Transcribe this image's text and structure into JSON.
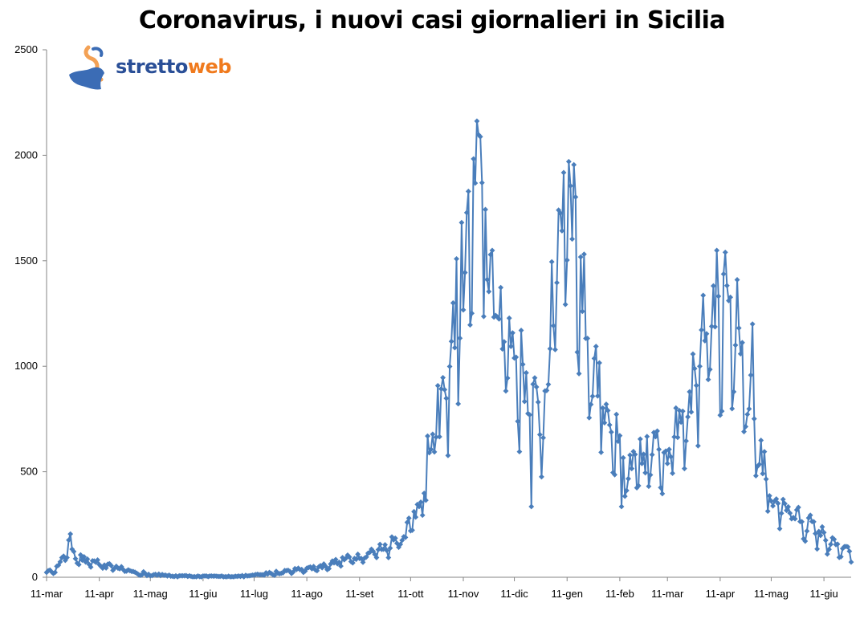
{
  "chart_data": {
    "type": "line",
    "title": "Coronavirus, i nuovi casi giornalieri in Sicilia",
    "xlabel": "",
    "ylabel": "",
    "ylim": [
      0,
      2500
    ],
    "yticks": [
      0,
      500,
      1000,
      1500,
      2000,
      2500
    ],
    "xticks": [
      "11-mar",
      "11-apr",
      "11-mag",
      "11-giu",
      "11-lug",
      "11-ago",
      "11-set",
      "11-ott",
      "11-nov",
      "11-dic",
      "11-gen",
      "11-feb",
      "11-mar",
      "11-apr",
      "11-mag",
      "11-giu"
    ],
    "grid": false,
    "legend": "none",
    "series": [
      {
        "color": "#4a7ebb",
        "x_start": "2020-03-11",
        "x_end": "2021-06-27",
        "marker": "diamond",
        "anchors": [
          [
            "2020-03-11",
            25
          ],
          [
            "2020-03-15",
            30
          ],
          [
            "2020-03-19",
            60
          ],
          [
            "2020-03-22",
            120
          ],
          [
            "2020-03-25",
            165
          ],
          [
            "2020-03-28",
            100
          ],
          [
            "2020-04-01",
            85
          ],
          [
            "2020-04-05",
            65
          ],
          [
            "2020-04-09",
            75
          ],
          [
            "2020-04-13",
            45
          ],
          [
            "2020-04-18",
            55
          ],
          [
            "2020-04-24",
            40
          ],
          [
            "2020-05-01",
            25
          ],
          [
            "2020-05-11",
            12
          ],
          [
            "2020-05-25",
            6
          ],
          [
            "2020-06-11",
            4
          ],
          [
            "2020-07-01",
            4
          ],
          [
            "2020-07-11",
            8
          ],
          [
            "2020-07-25",
            20
          ],
          [
            "2020-08-05",
            35
          ],
          [
            "2020-08-11",
            40
          ],
          [
            "2020-08-20",
            50
          ],
          [
            "2020-08-30",
            75
          ],
          [
            "2020-09-11",
            100
          ],
          [
            "2020-09-20",
            120
          ],
          [
            "2020-09-30",
            160
          ],
          [
            "2020-10-08",
            210
          ],
          [
            "2020-10-14",
            300
          ],
          [
            "2020-10-20",
            500
          ],
          [
            "2020-10-24",
            650
          ],
          [
            "2020-10-29",
            780
          ],
          [
            "2020-11-03",
            1000
          ],
          [
            "2020-11-08",
            1300
          ],
          [
            "2020-11-12",
            1450
          ],
          [
            "2020-11-16",
            1650
          ],
          [
            "2020-11-20",
            1800
          ],
          [
            "2020-11-24",
            1550
          ],
          [
            "2020-11-27",
            1420
          ],
          [
            "2020-12-01",
            1250
          ],
          [
            "2020-12-05",
            1200
          ],
          [
            "2020-12-10",
            1050
          ],
          [
            "2020-12-15",
            950
          ],
          [
            "2020-12-20",
            850
          ],
          [
            "2020-12-26",
            700
          ],
          [
            "2020-12-30",
            900
          ],
          [
            "2021-01-03",
            1300
          ],
          [
            "2021-01-06",
            1600
          ],
          [
            "2021-01-09",
            1800
          ],
          [
            "2021-01-13",
            1920
          ],
          [
            "2021-01-16",
            1600
          ],
          [
            "2021-01-20",
            1300
          ],
          [
            "2021-01-25",
            1000
          ],
          [
            "2021-01-30",
            900
          ],
          [
            "2021-02-04",
            780
          ],
          [
            "2021-02-08",
            650
          ],
          [
            "2021-02-13",
            500
          ],
          [
            "2021-02-18",
            470
          ],
          [
            "2021-02-22",
            520
          ],
          [
            "2021-02-27",
            560
          ],
          [
            "2021-03-05",
            580
          ],
          [
            "2021-03-11",
            600
          ],
          [
            "2021-03-16",
            720
          ],
          [
            "2021-03-20",
            780
          ],
          [
            "2021-03-25",
            870
          ],
          [
            "2021-03-30",
            1100
          ],
          [
            "2021-04-03",
            1300
          ],
          [
            "2021-04-07",
            1350
          ],
          [
            "2021-04-11",
            1200
          ],
          [
            "2021-04-16",
            1100
          ],
          [
            "2021-04-20",
            1000
          ],
          [
            "2021-04-25",
            880
          ],
          [
            "2021-04-30",
            750
          ],
          [
            "2021-05-04",
            600
          ],
          [
            "2021-05-08",
            450
          ],
          [
            "2021-05-11",
            380
          ],
          [
            "2021-05-15",
            350
          ],
          [
            "2021-05-20",
            320
          ],
          [
            "2021-05-27",
            280
          ],
          [
            "2021-06-03",
            240
          ],
          [
            "2021-06-11",
            190
          ],
          [
            "2021-06-18",
            140
          ],
          [
            "2021-06-27",
            110
          ]
        ],
        "spikes": [
          [
            "2020-12-21",
            335
          ],
          [
            "2021-01-15",
            1955
          ],
          [
            "2021-01-12",
            1970
          ],
          [
            "2020-11-22",
            1870
          ],
          [
            "2021-04-14",
            1540
          ],
          [
            "2021-04-21",
            1410
          ],
          [
            "2021-04-30",
            1200
          ],
          [
            "2021-02-12",
            335
          ],
          [
            "2020-10-20",
            365
          ]
        ]
      }
    ]
  },
  "logo": {
    "part1": "stretto",
    "part2": "web",
    "colors": {
      "part1": "#2a4f97",
      "part2": "#f07a1d"
    }
  }
}
